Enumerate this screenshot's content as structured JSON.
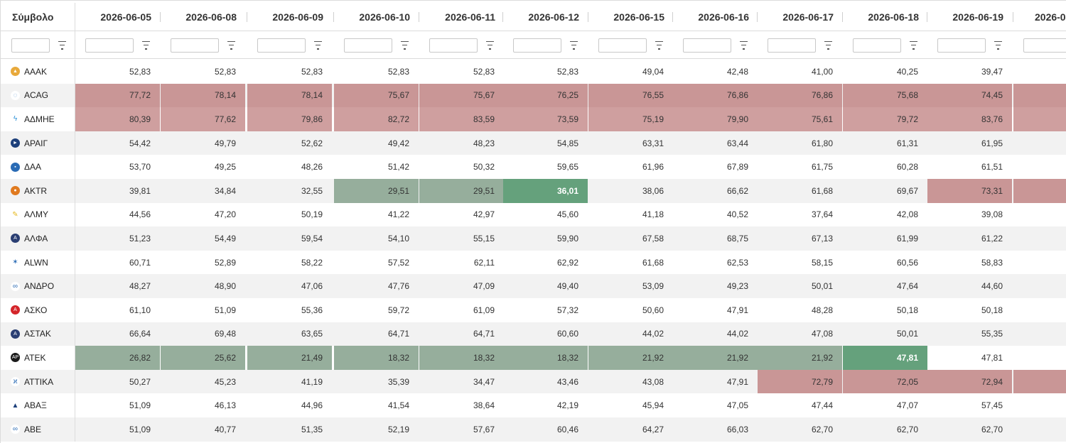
{
  "columns": {
    "symbol_header": "Σύμβολο",
    "dates": [
      "2026-06-05",
      "2026-06-08",
      "2026-06-09",
      "2026-06-10",
      "2026-06-11",
      "2026-06-12",
      "2026-06-15",
      "2026-06-16",
      "2026-06-17",
      "2026-06-18",
      "2026-06-19",
      "2026-0"
    ]
  },
  "colors": {
    "red_highlight": "#c99696",
    "green_highlight": "#96ae9c",
    "dark_green_highlight": "#65a17c",
    "stripe": "#f2f2f2"
  },
  "rows": [
    {
      "symbol": "AAAK",
      "icon": "ship-logo-icon",
      "values": [
        "52,83",
        "52,83",
        "52,83",
        "52,83",
        "52,83",
        "52,83",
        "49,04",
        "42,48",
        "41,00",
        "40,25",
        "39,47",
        ""
      ],
      "styles": [
        "",
        "",
        "",
        "",
        "",
        "",
        "",
        "",
        "",
        "",
        "",
        ""
      ]
    },
    {
      "symbol": "ACAG",
      "icon": "ring-logo-icon",
      "values": [
        "77,72",
        "78,14",
        "78,14",
        "75,67",
        "75,67",
        "76,25",
        "76,55",
        "76,86",
        "76,86",
        "75,68",
        "74,45",
        ""
      ],
      "styles": [
        "red",
        "red",
        "red",
        "red",
        "red",
        "red",
        "red",
        "red",
        "red",
        "red",
        "red",
        "red"
      ]
    },
    {
      "symbol": "ΑΔΜΗΕ",
      "icon": "bolt-logo-icon",
      "values": [
        "80,39",
        "77,62",
        "79,86",
        "82,72",
        "83,59",
        "73,59",
        "75,19",
        "79,90",
        "75,61",
        "79,72",
        "83,76",
        ""
      ],
      "styles": [
        "red2",
        "red2",
        "red2",
        "red2",
        "red2",
        "red2",
        "red2",
        "red2",
        "red2",
        "red2",
        "red2",
        "red2"
      ]
    },
    {
      "symbol": "ΑΡΑΙΓ",
      "icon": "plane-logo-icon",
      "values": [
        "54,42",
        "49,79",
        "52,62",
        "49,42",
        "48,23",
        "54,85",
        "63,31",
        "63,44",
        "61,80",
        "61,31",
        "61,95",
        ""
      ],
      "styles": [
        "",
        "",
        "",
        "",
        "",
        "",
        "",
        "",
        "",
        "",
        "",
        ""
      ]
    },
    {
      "symbol": "ΔΑΑ",
      "icon": "square-logo-icon",
      "values": [
        "53,70",
        "49,25",
        "48,26",
        "51,42",
        "50,32",
        "59,65",
        "61,96",
        "67,89",
        "61,75",
        "60,28",
        "61,51",
        ""
      ],
      "styles": [
        "",
        "",
        "",
        "",
        "",
        "",
        "",
        "",
        "",
        "",
        "",
        ""
      ]
    },
    {
      "symbol": "AKTR",
      "icon": "circle-logo-icon",
      "values": [
        "39,81",
        "34,84",
        "32,55",
        "29,51",
        "29,51",
        "36,01",
        "38,06",
        "66,62",
        "61,68",
        "69,67",
        "73,31",
        ""
      ],
      "styles": [
        "",
        "",
        "",
        "green",
        "green",
        "dgreen",
        "",
        "",
        "",
        "",
        "red",
        "red"
      ]
    },
    {
      "symbol": "ΑΛΜΥ",
      "icon": "feather-logo-icon",
      "values": [
        "44,56",
        "47,20",
        "50,19",
        "41,22",
        "42,97",
        "45,60",
        "41,18",
        "40,52",
        "37,64",
        "42,08",
        "39,08",
        ""
      ],
      "styles": [
        "",
        "",
        "",
        "",
        "",
        "",
        "",
        "",
        "",
        "",
        "",
        ""
      ]
    },
    {
      "symbol": "ΑΛΦΑ",
      "icon": "alpha-logo-icon",
      "values": [
        "51,23",
        "54,49",
        "59,54",
        "54,10",
        "55,15",
        "59,90",
        "67,58",
        "68,75",
        "67,13",
        "61,99",
        "61,22",
        ""
      ],
      "styles": [
        "",
        "",
        "",
        "",
        "",
        "",
        "",
        "",
        "",
        "",
        "",
        ""
      ]
    },
    {
      "symbol": "ALWN",
      "icon": "star-logo-icon",
      "values": [
        "60,71",
        "52,89",
        "58,22",
        "57,52",
        "62,11",
        "62,92",
        "61,68",
        "62,53",
        "58,15",
        "60,56",
        "58,83",
        ""
      ],
      "styles": [
        "",
        "",
        "",
        "",
        "",
        "",
        "",
        "",
        "",
        "",
        "",
        ""
      ]
    },
    {
      "symbol": "ΑΝΔΡΟ",
      "icon": "infinity-logo-icon",
      "values": [
        "48,27",
        "48,90",
        "47,06",
        "47,76",
        "47,09",
        "49,40",
        "53,09",
        "49,23",
        "50,01",
        "47,64",
        "44,60",
        ""
      ],
      "styles": [
        "",
        "",
        "",
        "",
        "",
        "",
        "",
        "",
        "",
        "",
        "",
        ""
      ]
    },
    {
      "symbol": "ΑΣΚΟ",
      "icon": "red-badge-logo-icon",
      "values": [
        "61,10",
        "51,09",
        "55,36",
        "59,72",
        "61,09",
        "57,32",
        "50,60",
        "47,91",
        "48,28",
        "50,18",
        "50,18",
        ""
      ],
      "styles": [
        "",
        "",
        "",
        "",
        "",
        "",
        "",
        "",
        "",
        "",
        "",
        ""
      ]
    },
    {
      "symbol": "ΑΣΤΑΚ",
      "icon": "alpha-logo-icon",
      "values": [
        "66,64",
        "69,48",
        "63,65",
        "64,71",
        "64,71",
        "60,60",
        "44,02",
        "44,02",
        "47,08",
        "50,01",
        "55,35",
        ""
      ],
      "styles": [
        "",
        "",
        "",
        "",
        "",
        "",
        "",
        "",
        "",
        "",
        "",
        ""
      ]
    },
    {
      "symbol": "ATEK",
      "icon": "ap-logo-icon",
      "values": [
        "26,82",
        "25,62",
        "21,49",
        "18,32",
        "18,32",
        "18,32",
        "21,92",
        "21,92",
        "21,92",
        "47,81",
        "47,81",
        ""
      ],
      "styles": [
        "green",
        "green",
        "green",
        "green",
        "green",
        "green",
        "green",
        "green",
        "green",
        "dgreen",
        "",
        ""
      ]
    },
    {
      "symbol": "ATTIKA",
      "icon": "runner-logo-icon",
      "values": [
        "50,27",
        "45,23",
        "41,19",
        "35,39",
        "34,47",
        "43,46",
        "43,08",
        "47,91",
        "72,79",
        "72,05",
        "72,94",
        ""
      ],
      "styles": [
        "",
        "",
        "",
        "",
        "",
        "",
        "",
        "",
        "red",
        "red",
        "red",
        "red"
      ]
    },
    {
      "symbol": "ΑΒΑΞ",
      "icon": "triangle-logo-icon",
      "values": [
        "51,09",
        "46,13",
        "44,96",
        "41,54",
        "38,64",
        "42,19",
        "45,94",
        "47,05",
        "47,44",
        "47,07",
        "57,45",
        ""
      ],
      "styles": [
        "",
        "",
        "",
        "",
        "",
        "",
        "",
        "",
        "",
        "",
        "",
        ""
      ]
    },
    {
      "symbol": "ABE",
      "icon": "sbs-logo-icon",
      "values": [
        "51,09",
        "40,77",
        "51,35",
        "52,19",
        "57,67",
        "60,46",
        "64,27",
        "66,03",
        "62,70",
        "62,70",
        "62,70",
        ""
      ],
      "styles": [
        "",
        "",
        "",
        "",
        "",
        "",
        "",
        "",
        "",
        "",
        "",
        ""
      ]
    }
  ]
}
